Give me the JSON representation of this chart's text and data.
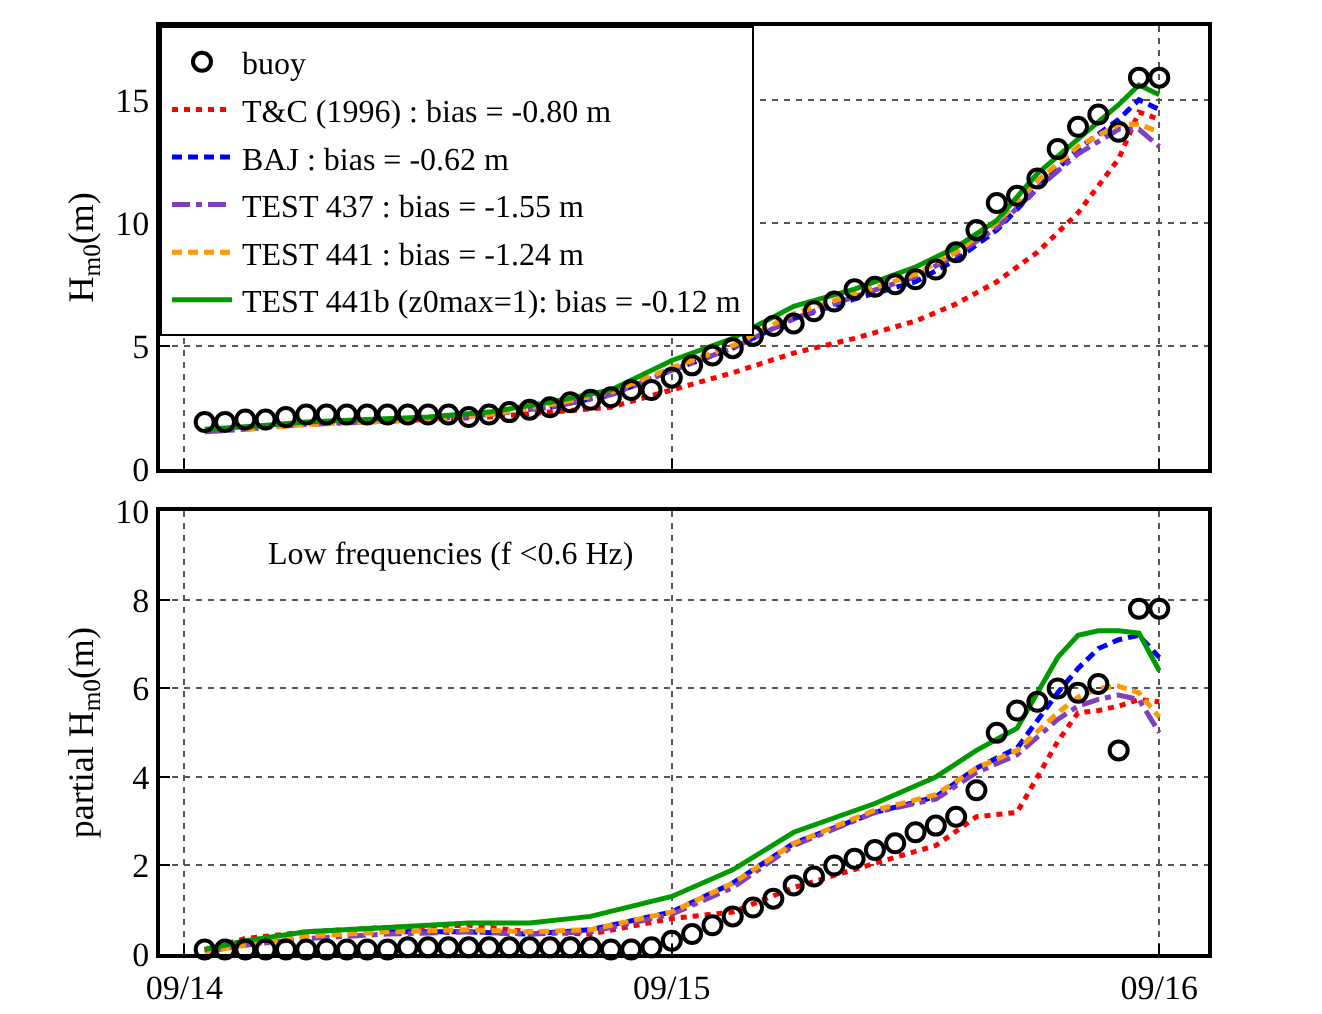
{
  "chart_data": [
    {
      "type": "line",
      "ylabel": "H$_{m0}$(m)",
      "xlim": [
        "--09-13T22:48",
        "--09-16T02:24"
      ],
      "xticks": [
        {
          "value": "--09-14",
          "label": "09/14"
        },
        {
          "value": "--09-15",
          "label": "09/15"
        },
        {
          "value": "--09-16",
          "label": "09/16"
        }
      ],
      "ylim": [
        0,
        18
      ],
      "yticks": [
        0,
        5,
        10,
        15
      ],
      "grid": true,
      "legend": "top left",
      "tick_labels": "y",
      "series": [
        {
          "name": "buoy",
          "type": "scatter",
          "marker": "circle",
          "color": "#000000",
          "x": [
            "--09-14T01:00",
            "--09-14T02:00",
            "--09-14T03:00",
            "--09-14T04:00",
            "--09-14T05:00",
            "--09-14T06:00",
            "--09-14T07:00",
            "--09-14T08:00",
            "--09-14T09:00",
            "--09-14T10:00",
            "--09-14T11:00",
            "--09-14T12:00",
            "--09-14T13:00",
            "--09-14T14:00",
            "--09-14T15:00",
            "--09-14T16:00",
            "--09-14T17:00",
            "--09-14T18:00",
            "--09-14T19:00",
            "--09-14T20:00",
            "--09-14T21:00",
            "--09-14T22:00",
            "--09-14T23:00",
            "--09-15T00:00",
            "--09-15T01:00",
            "--09-15T02:00",
            "--09-15T03:00",
            "--09-15T04:00",
            "--09-15T05:00",
            "--09-15T06:00",
            "--09-15T07:00",
            "--09-15T08:00",
            "--09-15T09:00",
            "--09-15T10:00",
            "--09-15T11:00",
            "--09-15T12:00",
            "--09-15T13:00",
            "--09-15T14:00",
            "--09-15T15:00",
            "--09-15T16:00",
            "--09-15T17:00",
            "--09-15T18:00",
            "--09-15T19:00",
            "--09-15T20:00",
            "--09-15T21:00",
            "--09-15T22:00",
            "--09-15T23:00",
            "--09-16T00:00"
          ],
          "values": [
            1.9,
            1.9,
            2.0,
            2.0,
            2.1,
            2.2,
            2.2,
            2.2,
            2.2,
            2.2,
            2.2,
            2.2,
            2.2,
            2.1,
            2.2,
            2.3,
            2.4,
            2.5,
            2.7,
            2.8,
            2.9,
            3.2,
            3.2,
            3.7,
            4.2,
            4.6,
            4.9,
            5.4,
            5.8,
            5.9,
            6.4,
            6.8,
            7.3,
            7.4,
            7.5,
            7.7,
            8.1,
            8.8,
            9.7,
            10.8,
            11.1,
            11.8,
            13.0,
            13.9,
            14.4,
            13.7,
            15.9,
            15.9
          ]
        },
        {
          "name": "T&C (1996) : bias = -0.80 m",
          "line_style": "dotted",
          "color": "#ff0000",
          "x": [
            "--09-14T09:00",
            "--09-14T12:00",
            "--09-14T15:00",
            "--09-14T18:00",
            "--09-14T21:00",
            "--09-15T00:00",
            "--09-15T03:00",
            "--09-15T06:00",
            "--09-15T09:00",
            "--09-15T12:00",
            "--09-15T14:00",
            "--09-15T16:00",
            "--09-15T18:00",
            "--09-15T20:00",
            "--09-15T22:00",
            "--09-15T23:00",
            "--09-16T00:00"
          ],
          "values": [
            1.9,
            2.0,
            2.1,
            2.3,
            2.5,
            3.2,
            3.9,
            4.7,
            5.3,
            6.0,
            6.7,
            7.6,
            8.8,
            10.4,
            12.6,
            14.5,
            14.2
          ]
        },
        {
          "name": "BAJ : bias = -0.62 m",
          "line_style": "dashed",
          "color": "#0000ff",
          "x": [
            "--09-14T18:00",
            "--09-14T21:00",
            "--09-15T00:00",
            "--09-15T03:00",
            "--09-15T06:00",
            "--09-15T09:00",
            "--09-15T12:00",
            "--09-15T14:00",
            "--09-15T16:00",
            "--09-15T18:00",
            "--09-15T20:00",
            "--09-15T22:00",
            "--09-15T23:00",
            "--09-16T00:00"
          ],
          "values": [
            2.5,
            3.0,
            4.0,
            4.9,
            6.1,
            6.9,
            7.6,
            8.5,
            9.7,
            11.4,
            13.0,
            14.2,
            15.0,
            14.6
          ]
        },
        {
          "name": "TEST 437 : bias = -1.55 m",
          "line_style": "dashdot",
          "color": "#7f3fbf",
          "x": [
            "--09-14T01:00",
            "--09-14T03:00",
            "--09-14T06:00",
            "--09-14T09:00",
            "--09-14T12:00",
            "--09-14T15:00",
            "--09-14T18:00",
            "--09-14T21:00",
            "--09-15T00:00",
            "--09-15T03:00",
            "--09-15T06:00",
            "--09-15T09:00",
            "--09-15T12:00",
            "--09-15T14:00",
            "--09-15T16:00",
            "--09-15T18:00",
            "--09-15T20:00",
            "--09-15T22:00",
            "--09-15T23:00",
            "--09-16T00:00"
          ],
          "values": [
            1.5,
            1.6,
            1.8,
            1.9,
            2.0,
            2.2,
            2.5,
            3.0,
            4.0,
            4.9,
            6.1,
            7.0,
            7.8,
            8.7,
            9.8,
            11.4,
            12.8,
            13.8,
            13.8,
            13.1
          ]
        },
        {
          "name": "TEST 441 : bias = -1.24 m",
          "line_style": "dashed",
          "color": "#ff9900",
          "x": [
            "--09-14T03:00",
            "--09-14T06:00",
            "--09-14T09:00",
            "--09-14T12:00",
            "--09-14T15:00",
            "--09-14T18:00",
            "--09-14T21:00",
            "--09-15T00:00",
            "--09-15T03:00",
            "--09-15T06:00",
            "--09-15T09:00",
            "--09-15T12:00",
            "--09-15T14:00",
            "--09-15T16:00",
            "--09-15T18:00",
            "--09-15T20:00",
            "--09-15T22:00",
            "--09-15T23:00",
            "--09-16T00:00"
          ],
          "values": [
            1.6,
            1.8,
            1.9,
            2.0,
            2.2,
            2.6,
            3.1,
            4.1,
            5.0,
            6.3,
            7.1,
            7.9,
            8.8,
            10.0,
            11.7,
            13.1,
            14.0,
            14.0,
            13.7
          ]
        },
        {
          "name": "TEST 441b (z0max=1): bias = -0.12 m",
          "line_style": "solid",
          "color": "#009900",
          "x": [
            "--09-14T01:00",
            "--09-14T03:00",
            "--09-14T06:00",
            "--09-14T09:00",
            "--09-14T12:00",
            "--09-14T15:00",
            "--09-14T18:00",
            "--09-14T21:00",
            "--09-15T00:00",
            "--09-15T03:00",
            "--09-15T06:00",
            "--09-15T09:00",
            "--09-15T12:00",
            "--09-15T14:00",
            "--09-15T16:00",
            "--09-15T18:00",
            "--09-15T20:00",
            "--09-15T22:00",
            "--09-15T23:00",
            "--09-16T00:00"
          ],
          "values": [
            1.6,
            1.7,
            1.9,
            2.0,
            2.1,
            2.3,
            2.7,
            3.2,
            4.4,
            5.3,
            6.6,
            7.3,
            8.2,
            9.0,
            10.1,
            12.0,
            13.4,
            14.8,
            15.6,
            15.2
          ]
        }
      ]
    },
    {
      "type": "line",
      "ylabel": "partial H$_{m0}$(m)",
      "annotations": [
        "Low frequencies (f <0.6 Hz)"
      ],
      "xlim": [
        "--09-13T22:48",
        "--09-16T02:24"
      ],
      "xticks": [
        {
          "value": "--09-14",
          "label": "09/14"
        },
        {
          "value": "--09-15",
          "label": "09/15"
        },
        {
          "value": "--09-16",
          "label": "09/16"
        }
      ],
      "ylim": [
        0,
        10
      ],
      "yticks": [
        0,
        2,
        4,
        6,
        8,
        10
      ],
      "grid": true,
      "series": [
        {
          "type": "scatter",
          "marker": "circle",
          "color": "#000000",
          "x": [
            "--09-14T01:00",
            "--09-14T02:00",
            "--09-14T03:00",
            "--09-14T04:00",
            "--09-14T05:00",
            "--09-14T06:00",
            "--09-14T07:00",
            "--09-14T08:00",
            "--09-14T09:00",
            "--09-14T10:00",
            "--09-14T11:00",
            "--09-14T12:00",
            "--09-14T13:00",
            "--09-14T14:00",
            "--09-14T15:00",
            "--09-14T16:00",
            "--09-14T17:00",
            "--09-14T18:00",
            "--09-14T19:00",
            "--09-14T20:00",
            "--09-14T21:00",
            "--09-14T22:00",
            "--09-14T23:00",
            "--09-15T00:00",
            "--09-15T01:00",
            "--09-15T02:00",
            "--09-15T03:00",
            "--09-15T04:00",
            "--09-15T05:00",
            "--09-15T06:00",
            "--09-15T07:00",
            "--09-15T08:00",
            "--09-15T09:00",
            "--09-15T10:00",
            "--09-15T11:00",
            "--09-15T12:00",
            "--09-15T13:00",
            "--09-15T14:00",
            "--09-15T15:00",
            "--09-15T16:00",
            "--09-15T17:00",
            "--09-15T18:00",
            "--09-15T19:00",
            "--09-15T20:00",
            "--09-15T21:00",
            "--09-15T22:00",
            "--09-15T23:00",
            "--09-16T00:00"
          ],
          "values": [
            0.1,
            0.1,
            0.1,
            0.1,
            0.1,
            0.1,
            0.1,
            0.1,
            0.1,
            0.1,
            0.15,
            0.15,
            0.15,
            0.15,
            0.15,
            0.15,
            0.15,
            0.15,
            0.15,
            0.15,
            0.1,
            0.1,
            0.15,
            0.3,
            0.45,
            0.65,
            0.85,
            1.05,
            1.25,
            1.55,
            1.75,
            2.0,
            2.15,
            2.35,
            2.5,
            2.75,
            2.9,
            3.1,
            3.7,
            5.0,
            5.5,
            5.7,
            6.0,
            5.9,
            6.1,
            4.6,
            7.8,
            7.8
          ]
        },
        {
          "line_style": "dotted",
          "color": "#ff0000",
          "x": [
            "--09-14T01:00",
            "--09-14T03:00",
            "--09-14T06:00",
            "--09-14T10:00",
            "--09-14T14:00",
            "--09-14T17:00",
            "--09-14T20:00",
            "--09-15T00:00",
            "--09-15T03:00",
            "--09-15T06:00",
            "--09-15T10:00",
            "--09-15T13:00",
            "--09-15T15:00",
            "--09-15T17:00",
            "--09-15T19:00",
            "--09-15T20:00",
            "--09-15T21:00",
            "--09-15T22:00",
            "--09-15T23:00",
            "--09-16T00:00"
          ],
          "values": [
            0.1,
            0.35,
            0.5,
            0.6,
            0.65,
            0.5,
            0.45,
            0.8,
            0.95,
            1.5,
            2.05,
            2.45,
            3.1,
            3.2,
            4.8,
            5.45,
            5.5,
            5.6,
            5.75,
            5.7
          ]
        },
        {
          "line_style": "dashed",
          "color": "#0000ff",
          "x": [
            "--09-14T10:00",
            "--09-14T14:00",
            "--09-14T17:00",
            "--09-14T20:00",
            "--09-15T00:00",
            "--09-15T03:00",
            "--09-15T06:00",
            "--09-15T10:00",
            "--09-15T13:00",
            "--09-15T15:00",
            "--09-15T17:00",
            "--09-15T19:00",
            "--09-15T20:00",
            "--09-15T21:00",
            "--09-15T22:00",
            "--09-15T23:00",
            "--09-16T00:00"
          ],
          "values": [
            0.5,
            0.5,
            0.45,
            0.55,
            0.95,
            1.6,
            2.5,
            3.2,
            3.55,
            4.2,
            4.65,
            5.9,
            6.45,
            6.9,
            7.1,
            7.2,
            6.7
          ]
        },
        {
          "line_style": "dashdot",
          "color": "#7f3fbf",
          "x": [
            "--09-14T01:00",
            "--09-14T03:00",
            "--09-14T06:00",
            "--09-14T10:00",
            "--09-14T14:00",
            "--09-14T17:00",
            "--09-14T20:00",
            "--09-15T00:00",
            "--09-15T03:00",
            "--09-15T06:00",
            "--09-15T10:00",
            "--09-15T13:00",
            "--09-15T15:00",
            "--09-15T17:00",
            "--09-15T19:00",
            "--09-15T20:00",
            "--09-15T21:00",
            "--09-15T22:00",
            "--09-15T23:00",
            "--09-16T00:00"
          ],
          "values": [
            0.05,
            0.2,
            0.35,
            0.45,
            0.5,
            0.45,
            0.5,
            0.9,
            1.5,
            2.45,
            3.2,
            3.5,
            4.1,
            4.5,
            5.3,
            5.6,
            5.75,
            5.85,
            5.75,
            5.0
          ]
        },
        {
          "line_style": "dashed",
          "color": "#ff9900",
          "x": [
            "--09-14T01:00",
            "--09-14T03:00",
            "--09-14T06:00",
            "--09-14T10:00",
            "--09-14T14:00",
            "--09-14T17:00",
            "--09-14T20:00",
            "--09-15T00:00",
            "--09-15T03:00",
            "--09-15T06:00",
            "--09-15T10:00",
            "--09-15T13:00",
            "--09-15T15:00",
            "--09-15T17:00",
            "--09-15T19:00",
            "--09-15T20:00",
            "--09-15T21:00",
            "--09-15T22:00",
            "--09-15T23:00",
            "--09-16T00:00"
          ],
          "values": [
            0.05,
            0.2,
            0.4,
            0.5,
            0.55,
            0.5,
            0.55,
            0.95,
            1.6,
            2.5,
            3.25,
            3.6,
            4.2,
            4.6,
            5.45,
            5.8,
            6.0,
            6.05,
            5.9,
            5.35
          ]
        },
        {
          "line_style": "solid",
          "color": "#009900",
          "x": [
            "--09-14T01:00",
            "--09-14T03:00",
            "--09-14T06:00",
            "--09-14T10:00",
            "--09-14T14:00",
            "--09-14T17:00",
            "--09-14T20:00",
            "--09-15T00:00",
            "--09-15T03:00",
            "--09-15T06:00",
            "--09-15T10:00",
            "--09-15T13:00",
            "--09-15T15:00",
            "--09-15T17:00",
            "--09-15T19:00",
            "--09-15T20:00",
            "--09-15T21:00",
            "--09-15T22:00",
            "--09-15T23:00",
            "--09-16T00:00"
          ],
          "values": [
            0.1,
            0.3,
            0.5,
            0.6,
            0.7,
            0.7,
            0.85,
            1.3,
            1.9,
            2.75,
            3.4,
            4.0,
            4.6,
            5.1,
            6.7,
            7.2,
            7.3,
            7.3,
            7.25,
            6.4
          ]
        }
      ]
    }
  ]
}
